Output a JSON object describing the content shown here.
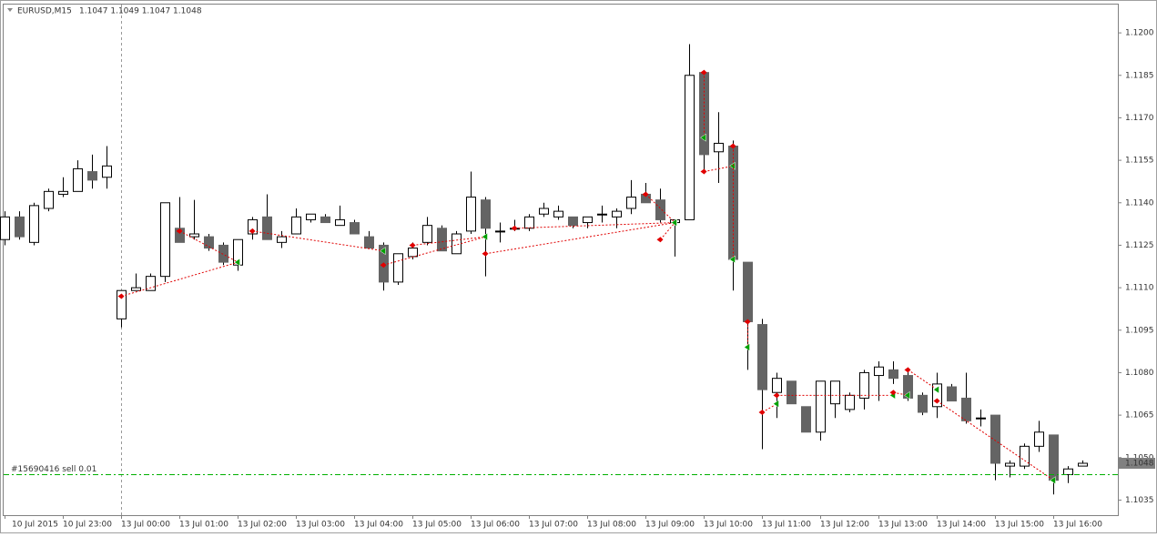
{
  "chart_data": {
    "type": "candlestick",
    "title": "EURUSD,M15",
    "header_values": "1.1047 1.1049 1.1047 1.1048",
    "categories": [
      "10 Jul 2015",
      null,
      null,
      null,
      "10 Jul 23:00",
      null,
      null,
      null,
      "13 Jul 00:00",
      null,
      null,
      null,
      "13 Jul 01:00",
      null,
      null,
      null,
      "13 Jul 02:00",
      null,
      null,
      null,
      "13 Jul 03:00",
      null,
      null,
      null,
      "13 Jul 04:00",
      null,
      null,
      null,
      "13 Jul 05:00",
      null,
      null,
      null,
      "13 Jul 06:00",
      null,
      null,
      null,
      "13 Jul 07:00",
      null,
      null,
      null,
      "13 Jul 08:00",
      null,
      null,
      null,
      "13 Jul 09:00",
      null,
      null,
      null,
      "13 Jul 10:00",
      null,
      null,
      null,
      "13 Jul 11:00",
      null,
      null,
      null,
      "13 Jul 12:00",
      null,
      null,
      null,
      "13 Jul 13:00",
      null,
      null,
      null,
      "13 Jul 14:00",
      null,
      null,
      null,
      "13 Jul 15:00",
      null,
      null,
      null,
      "13 Jul 16:00",
      null,
      null
    ],
    "open": [
      1.1127,
      1.1135,
      1.1126,
      1.1138,
      1.1143,
      1.1144,
      1.1151,
      1.1149,
      1.1099,
      1.1109,
      1.1109,
      1.1114,
      1.1131,
      1.1128,
      1.1128,
      1.1125,
      1.1118,
      1.1129,
      1.1135,
      1.1126,
      1.1129,
      1.1134,
      1.1135,
      1.1132,
      1.1133,
      1.1128,
      1.1125,
      1.1112,
      1.1121,
      1.1126,
      1.1131,
      1.1122,
      1.113,
      1.1141,
      1.113,
      1.1131,
      1.1131,
      1.1136,
      1.1135,
      1.1135,
      1.1133,
      1.1136,
      1.1135,
      1.1138,
      1.1143,
      1.1141,
      1.1133,
      1.1134,
      1.1186,
      1.1158,
      1.116,
      1.1119,
      1.1097,
      1.1073,
      1.1077,
      1.1068,
      1.1059,
      1.1069,
      1.1067,
      1.1071,
      1.1079,
      1.1081,
      1.1079,
      1.1072,
      1.1068,
      1.1075,
      1.1071,
      1.1064,
      1.1065,
      1.1047,
      1.1047,
      1.1054,
      1.1058,
      1.1044,
      1.1047
    ],
    "high": [
      1.1137,
      1.1137,
      1.114,
      1.1145,
      1.1149,
      1.1155,
      1.1157,
      1.116,
      1.1109,
      1.1115,
      1.1115,
      1.114,
      1.1142,
      1.1141,
      1.1129,
      1.1126,
      1.1127,
      1.1135,
      1.1143,
      1.113,
      1.1138,
      1.1136,
      1.1136,
      1.1139,
      1.1134,
      1.113,
      1.1126,
      1.1122,
      1.1126,
      1.1135,
      1.1132,
      1.113,
      1.1151,
      1.1142,
      1.1133,
      1.1134,
      1.1136,
      1.114,
      1.1139,
      1.1135,
      1.1135,
      1.1139,
      1.1138,
      1.1148,
      1.1147,
      1.1145,
      1.1134,
      1.1196,
      1.1186,
      1.1172,
      1.1162,
      1.1119,
      1.1099,
      1.108,
      1.1077,
      1.1068,
      1.1077,
      1.1077,
      1.1073,
      1.1081,
      1.1084,
      1.1084,
      1.1081,
      1.1073,
      1.108,
      1.1076,
      1.108,
      1.1067,
      1.1065,
      1.1049,
      1.1055,
      1.1063,
      1.1058,
      1.1047,
      1.1049
    ],
    "low": [
      1.1125,
      1.1127,
      1.1125,
      1.1137,
      1.1142,
      1.1144,
      1.1145,
      1.1145,
      1.1096,
      1.1109,
      1.1109,
      1.1112,
      1.1126,
      1.1127,
      1.1123,
      1.1118,
      1.1116,
      1.1127,
      1.1127,
      1.1124,
      1.1129,
      1.1133,
      1.1133,
      1.1132,
      1.1129,
      1.1124,
      1.1109,
      1.1111,
      1.112,
      1.1125,
      1.1123,
      1.1122,
      1.1129,
      1.1114,
      1.1126,
      1.113,
      1.113,
      1.1135,
      1.1134,
      1.1131,
      1.1131,
      1.1133,
      1.1131,
      1.1136,
      1.114,
      1.1133,
      1.1121,
      1.1134,
      1.1151,
      1.1147,
      1.1109,
      1.1081,
      1.1053,
      1.1064,
      1.1069,
      1.1059,
      1.1056,
      1.1064,
      1.1066,
      1.1067,
      1.107,
      1.1076,
      1.107,
      1.1065,
      1.1064,
      1.107,
      1.1062,
      1.1061,
      1.1042,
      1.1043,
      1.1046,
      1.1052,
      1.1037,
      1.1041,
      1.1047
    ],
    "close": [
      1.1135,
      1.1128,
      1.1139,
      1.1144,
      1.1144,
      1.1152,
      1.1148,
      1.1153,
      1.1109,
      1.111,
      1.1114,
      1.114,
      1.1126,
      1.1129,
      1.1124,
      1.1119,
      1.1127,
      1.1134,
      1.1127,
      1.1128,
      1.1135,
      1.1136,
      1.1133,
      1.1134,
      1.1129,
      1.1124,
      1.1112,
      1.1122,
      1.1124,
      1.1132,
      1.1123,
      1.1129,
      1.1142,
      1.1131,
      1.113,
      1.1131,
      1.1135,
      1.1138,
      1.1137,
      1.1132,
      1.1135,
      1.1136,
      1.1137,
      1.1142,
      1.114,
      1.1134,
      1.1134,
      1.1185,
      1.1157,
      1.1161,
      1.112,
      1.1098,
      1.1074,
      1.1078,
      1.1069,
      1.1059,
      1.1077,
      1.1077,
      1.1072,
      1.108,
      1.1082,
      1.1078,
      1.1071,
      1.1066,
      1.1076,
      1.107,
      1.1063,
      1.1064,
      1.1048,
      1.1048,
      1.1054,
      1.1059,
      1.1042,
      1.1046,
      1.1048
    ],
    "trades": [
      {
        "open_bar": 8,
        "open_price": 1.1107,
        "close_bar": 16,
        "close_price": 1.1119
      },
      {
        "open_bar": 12,
        "open_price": 1.113,
        "close_bar": 16,
        "close_price": 1.1119
      },
      {
        "open_bar": 17,
        "open_price": 1.113,
        "close_bar": 26,
        "close_price": 1.1123
      },
      {
        "open_bar": 26,
        "open_price": 1.1118,
        "close_bar": 33,
        "close_price": 1.1128
      },
      {
        "open_bar": 28,
        "open_price": 1.1125,
        "close_bar": 33,
        "close_price": 1.1128
      },
      {
        "open_bar": 33,
        "open_price": 1.1122,
        "close_bar": 46,
        "close_price": 1.1133
      },
      {
        "open_bar": 35,
        "open_price": 1.1131,
        "close_bar": 46,
        "close_price": 1.1133
      },
      {
        "open_bar": 44,
        "open_price": 1.1143,
        "close_bar": 46,
        "close_price": 1.1133
      },
      {
        "open_bar": 45,
        "open_price": 1.1127,
        "close_bar": 46,
        "close_price": 1.1133
      },
      {
        "open_bar": 48,
        "open_price": 1.1186,
        "close_bar": 48,
        "close_price": 1.1163
      },
      {
        "open_bar": 48,
        "open_price": 1.1151,
        "close_bar": 50,
        "close_price": 1.1153
      },
      {
        "open_bar": 50,
        "open_price": 1.116,
        "close_bar": 50,
        "close_price": 1.112
      },
      {
        "open_bar": 51,
        "open_price": 1.1098,
        "close_bar": 51,
        "close_price": 1.1089
      },
      {
        "open_bar": 52,
        "open_price": 1.1066,
        "close_bar": 53,
        "close_price": 1.1069
      },
      {
        "open_bar": 53,
        "open_price": 1.1072,
        "close_bar": 61,
        "close_price": 1.1072
      },
      {
        "open_bar": 61,
        "open_price": 1.1073,
        "close_bar": 62,
        "close_price": 1.1072
      },
      {
        "open_bar": 62,
        "open_price": 1.1081,
        "close_bar": 64,
        "close_price": 1.1074
      },
      {
        "open_bar": 64,
        "open_price": 1.107,
        "close_bar": 72,
        "close_price": 1.1042
      }
    ],
    "order": {
      "label": "#15690416 sell 0.01",
      "price": 1.1044
    },
    "ylim": [
      1.103,
      1.121
    ],
    "yticks": [
      {
        "value": 1.12,
        "label": "1.1200"
      },
      1.1185,
      {
        "value": 1.117,
        "label": "1.1170"
      },
      1.1155,
      {
        "value": 1.114,
        "label": "1.1140"
      },
      1.1125,
      {
        "value": 1.111,
        "label": "1.1110"
      },
      1.1095,
      {
        "value": 1.108,
        "label": "1.1080"
      },
      1.1065,
      {
        "value": 1.105,
        "label": "1.1050"
      },
      1.1035
    ],
    "bull_color": "#ffffff",
    "bear_color": "#646464",
    "candle_stroke": "#000000",
    "trade_color": "#e00000",
    "exit_color": "#00a000",
    "order_color": "#00b000"
  }
}
